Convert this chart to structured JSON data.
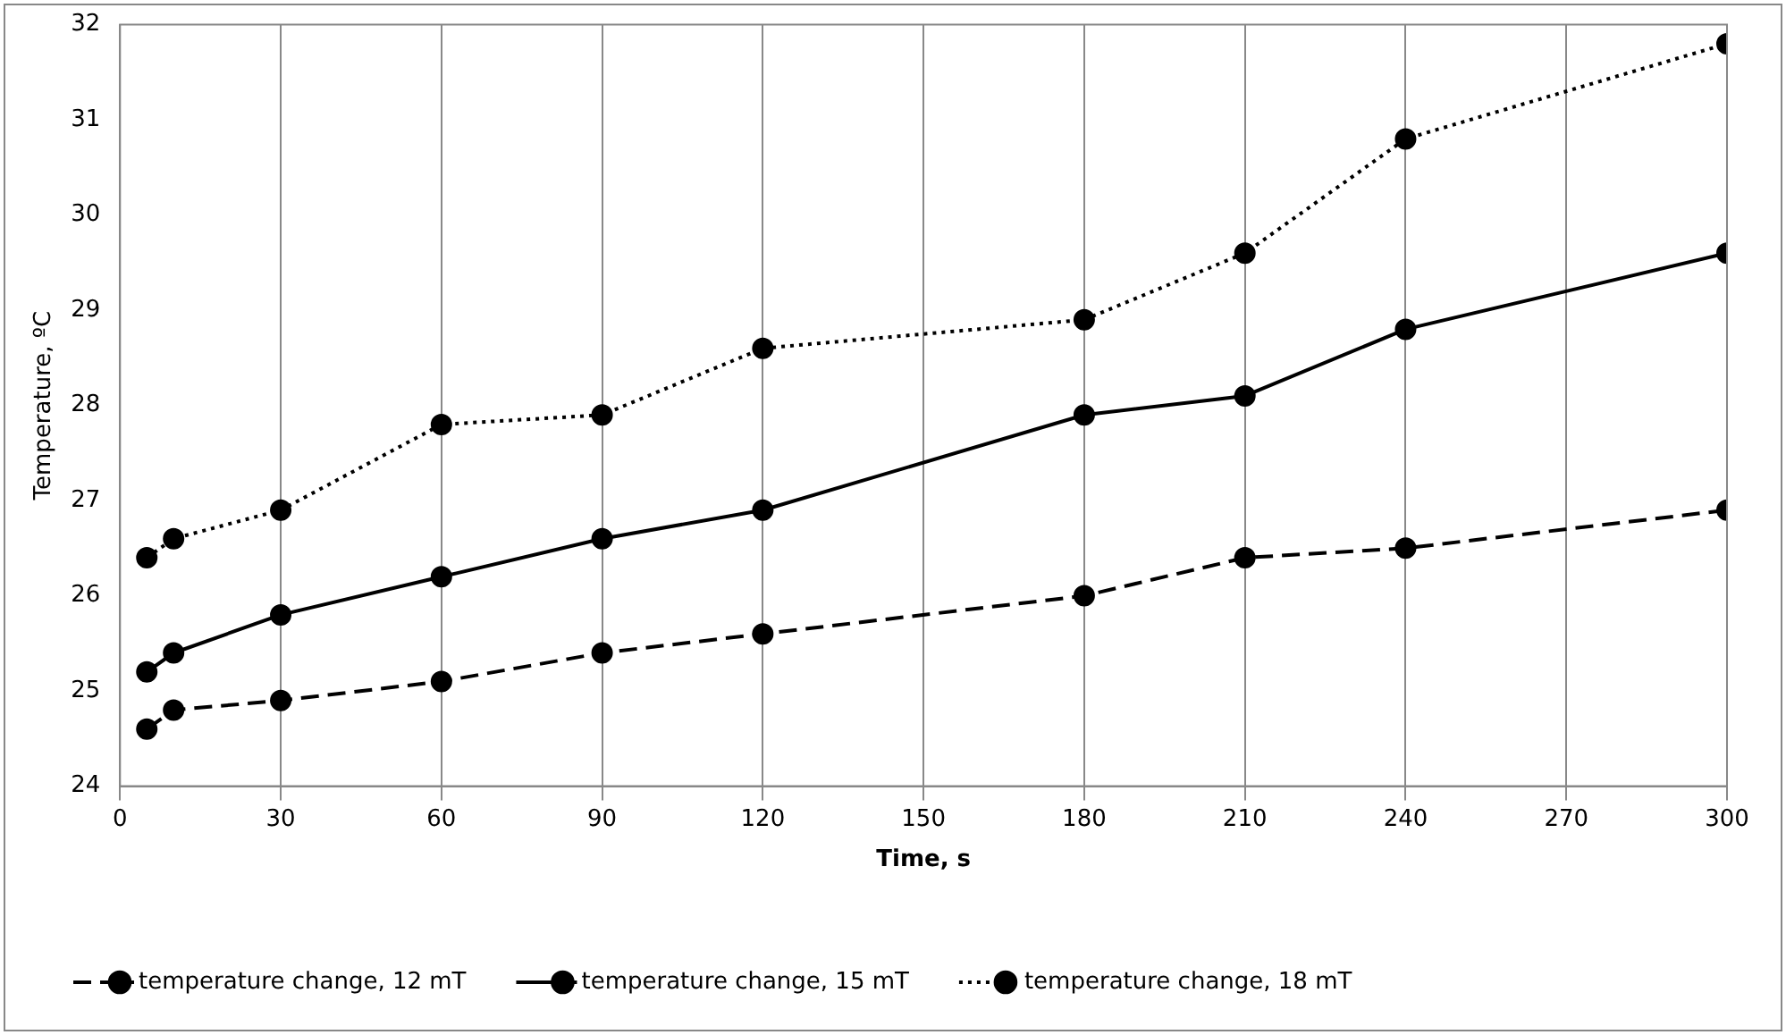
{
  "chart_data": {
    "type": "line",
    "xlabel": "Time, s",
    "ylabel": "Temperature, ºC",
    "x": [
      5,
      10,
      30,
      60,
      90,
      120,
      180,
      210,
      240,
      300
    ],
    "series": [
      {
        "name": "temperature change, 12 mT",
        "color": "#000000",
        "line_style": "dashed",
        "values": [
          24.6,
          24.8,
          24.9,
          25.1,
          25.4,
          25.6,
          26.0,
          26.4,
          26.5,
          26.9
        ]
      },
      {
        "name": "temperature change, 15 mT",
        "color": "#000000",
        "line_style": "solid",
        "values": [
          25.2,
          25.4,
          25.8,
          26.2,
          26.6,
          26.9,
          27.9,
          28.1,
          28.8,
          29.6
        ]
      },
      {
        "name": "temperature change, 18 mT",
        "color": "#000000",
        "line_style": "dotted",
        "values": [
          26.4,
          26.6,
          26.9,
          27.8,
          27.9,
          28.6,
          28.9,
          29.6,
          30.8,
          31.8
        ]
      }
    ],
    "xlim": [
      0,
      300
    ],
    "xticks": [
      0,
      30,
      60,
      90,
      120,
      150,
      180,
      210,
      240,
      270,
      300
    ],
    "ylim": [
      24,
      32
    ],
    "yticks": [
      24,
      25,
      26,
      27,
      28,
      29,
      30,
      31,
      32
    ],
    "grid": "x",
    "legend": "bottom",
    "marker": "circle"
  }
}
